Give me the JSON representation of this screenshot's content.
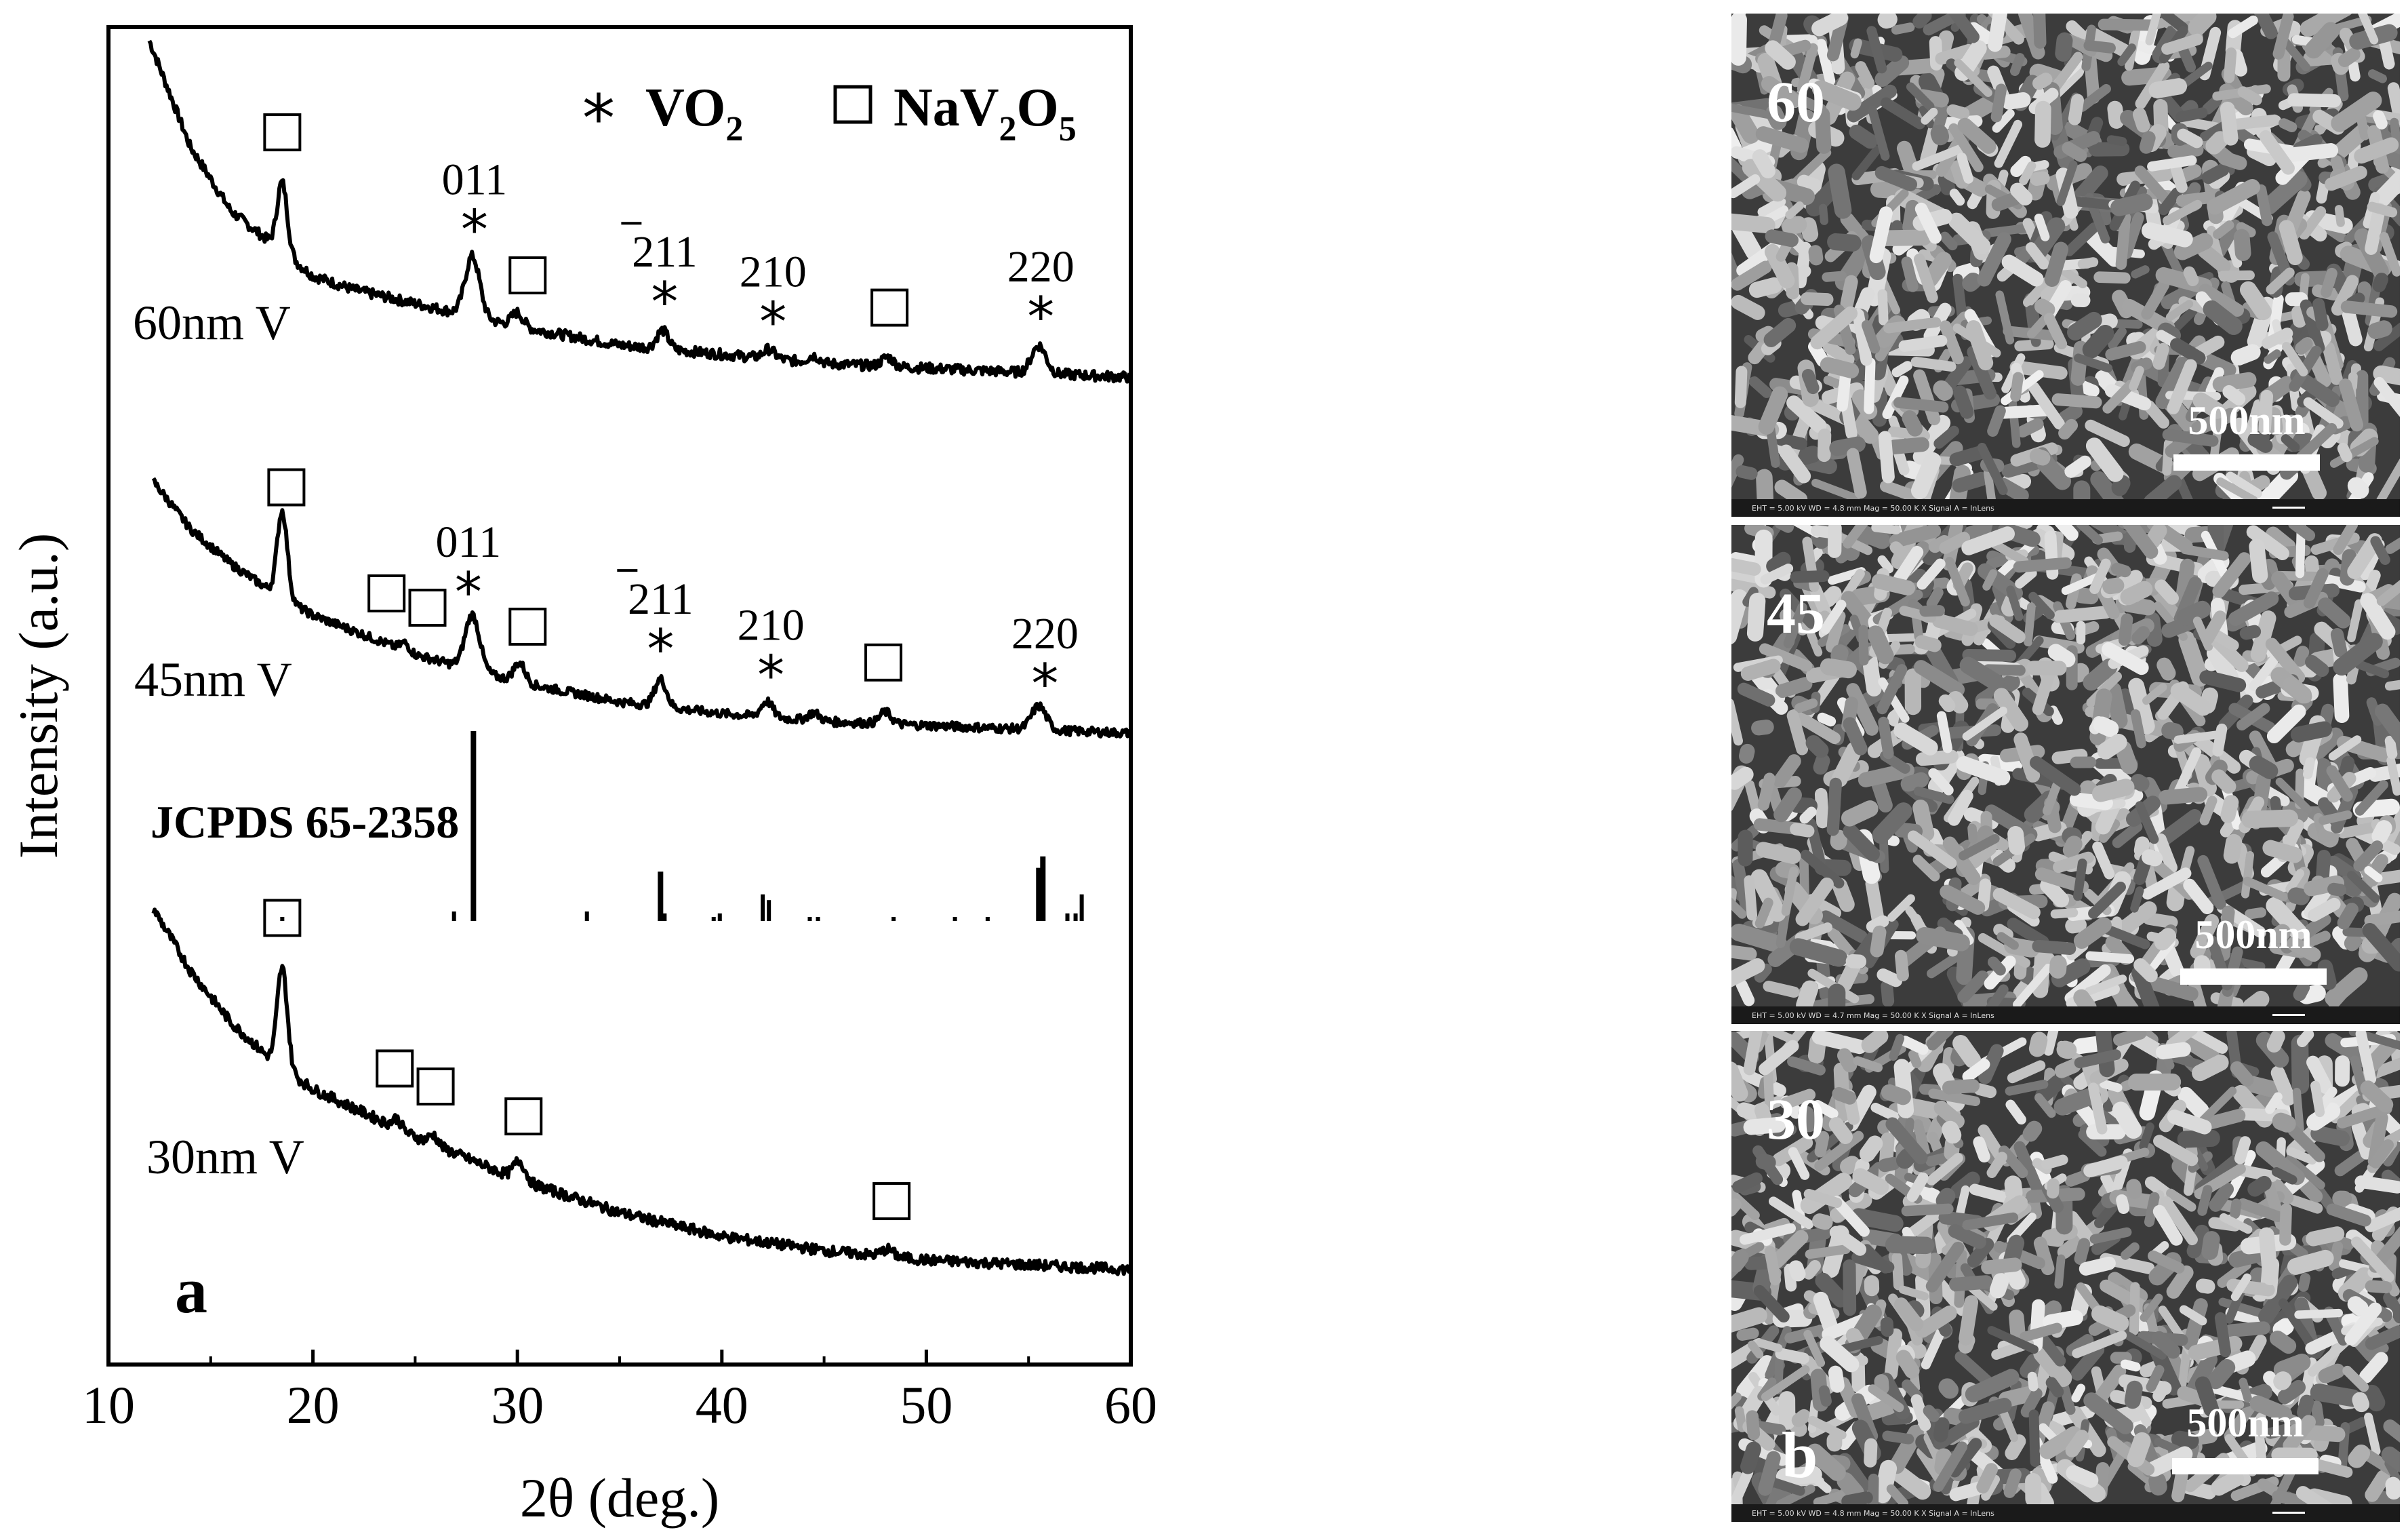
{
  "chart_data": {
    "type": "line",
    "panel_label": "a",
    "xlabel": "2θ (deg.)",
    "ylabel": "Intensity (a.u.)",
    "xlim": [
      10,
      60
    ],
    "xticks": [
      10,
      20,
      30,
      40,
      50,
      60
    ],
    "legend": [
      {
        "marker": "*",
        "label": "VO",
        "sub": "2"
      },
      {
        "marker": "□",
        "label": "NaV₂O₅"
      }
    ],
    "series": [
      {
        "name": "60nm V",
        "start_x": 12.0,
        "envelope": [
          [
            12,
            100
          ],
          [
            14,
            77
          ],
          [
            16,
            63
          ],
          [
            18,
            56
          ],
          [
            20,
            49
          ],
          [
            22,
            46
          ],
          [
            25,
            43
          ],
          [
            30,
            38
          ],
          [
            35,
            34
          ],
          [
            40,
            32
          ],
          [
            45,
            30
          ],
          [
            50,
            29
          ],
          [
            55,
            28
          ],
          [
            60,
            27
          ]
        ],
        "peaks": [
          [
            18.5,
            15,
            0.35
          ],
          [
            27.8,
            13,
            0.5
          ],
          [
            30.0,
            3,
            0.4
          ],
          [
            37.1,
            4,
            0.4
          ],
          [
            42.3,
            2,
            0.4
          ],
          [
            44.5,
            1.5,
            0.4
          ],
          [
            48.1,
            2,
            0.4
          ],
          [
            55.5,
            6,
            0.5
          ]
        ],
        "markers": [
          {
            "x": 18.5,
            "symbol": "square"
          },
          {
            "x": 27.9,
            "symbol": "star",
            "label": "011"
          },
          {
            "x": 30.5,
            "symbol": "square"
          },
          {
            "x": 37.2,
            "symbol": "star",
            "label": "211",
            "overbar_digit": "2"
          },
          {
            "x": 42.5,
            "symbol": "star",
            "label": "210"
          },
          {
            "x": 48.2,
            "symbol": "square"
          },
          {
            "x": 55.6,
            "symbol": "star",
            "label": "220"
          }
        ]
      },
      {
        "name": "45nm V",
        "start_x": 12.2,
        "envelope": [
          [
            12.2,
            100
          ],
          [
            14,
            88
          ],
          [
            16,
            79
          ],
          [
            18,
            72
          ],
          [
            20,
            66
          ],
          [
            22,
            62
          ],
          [
            25,
            56
          ],
          [
            30,
            49
          ],
          [
            35,
            44
          ],
          [
            40,
            41
          ],
          [
            45,
            39
          ],
          [
            50,
            38
          ],
          [
            55,
            37
          ],
          [
            60,
            36
          ]
        ],
        "peaks": [
          [
            18.5,
            22,
            0.35
          ],
          [
            24.5,
            2,
            0.3
          ],
          [
            27.8,
            14,
            0.5
          ],
          [
            30.1,
            5,
            0.4
          ],
          [
            37.0,
            7,
            0.4
          ],
          [
            42.2,
            4,
            0.4
          ],
          [
            44.5,
            2,
            0.4
          ],
          [
            48.0,
            3,
            0.4
          ],
          [
            55.5,
            6,
            0.5
          ]
        ],
        "markers": [
          {
            "x": 18.7,
            "symbol": "square"
          },
          {
            "x": 23.6,
            "symbol": "square"
          },
          {
            "x": 25.6,
            "symbol": "square"
          },
          {
            "x": 27.6,
            "symbol": "star",
            "label": "011"
          },
          {
            "x": 30.5,
            "symbol": "square"
          },
          {
            "x": 37.0,
            "symbol": "star",
            "label": "211",
            "overbar_digit": "2"
          },
          {
            "x": 42.4,
            "symbol": "star",
            "label": "210"
          },
          {
            "x": 47.9,
            "symbol": "square"
          },
          {
            "x": 55.8,
            "symbol": "star",
            "label": "220"
          }
        ]
      },
      {
        "name": "30nm V",
        "start_x": 12.2,
        "envelope": [
          [
            12.2,
            100
          ],
          [
            14,
            87
          ],
          [
            16,
            76
          ],
          [
            18,
            68
          ],
          [
            20,
            62
          ],
          [
            22,
            58
          ],
          [
            25,
            52
          ],
          [
            30,
            43
          ],
          [
            35,
            36
          ],
          [
            40,
            31
          ],
          [
            45,
            28
          ],
          [
            50,
            26
          ],
          [
            55,
            25
          ],
          [
            60,
            24
          ]
        ],
        "peaks": [
          [
            18.5,
            21,
            0.35
          ],
          [
            24.1,
            2,
            0.3
          ],
          [
            25.9,
            2,
            0.3
          ],
          [
            30.1,
            4,
            0.4
          ],
          [
            48.1,
            1.5,
            0.4
          ]
        ],
        "markers": [
          {
            "x": 18.5,
            "symbol": "square"
          },
          {
            "x": 24.0,
            "symbol": "square"
          },
          {
            "x": 26.0,
            "symbol": "square"
          },
          {
            "x": 30.3,
            "symbol": "square"
          },
          {
            "x": 48.3,
            "symbol": "square"
          }
        ]
      }
    ],
    "reference": {
      "name": "JCPDS 65-2358",
      "sticks": [
        [
          18.5,
          1
        ],
        [
          26.9,
          5
        ],
        [
          27.85,
          100
        ],
        [
          33.4,
          5
        ],
        [
          37.0,
          26
        ],
        [
          37.2,
          4
        ],
        [
          39.6,
          2
        ],
        [
          39.9,
          4
        ],
        [
          42.0,
          14
        ],
        [
          42.3,
          11
        ],
        [
          44.3,
          2
        ],
        [
          44.7,
          2
        ],
        [
          48.4,
          2
        ],
        [
          51.4,
          1
        ],
        [
          53.0,
          2
        ],
        [
          55.5,
          28
        ],
        [
          55.7,
          34
        ],
        [
          56.9,
          4
        ],
        [
          57.3,
          4
        ],
        [
          57.6,
          14
        ]
      ]
    }
  },
  "sem": {
    "panel_label": "b",
    "panels": [
      {
        "thickness": "60",
        "scalebar": "500nm",
        "info": "EHT = 5.00 kV    WD = 4.8 mm    Mag = 50.00 K X    Signal A = InLens"
      },
      {
        "thickness": "45",
        "scalebar": "500nm",
        "info": "EHT = 5.00 kV    WD = 4.7 mm    Mag = 50.00 K X    Signal A = InLens"
      },
      {
        "thickness": "30",
        "scalebar": "500nm",
        "info": "EHT = 5.00 kV    WD = 4.8 mm    Mag = 50.00 K X    Signal A = InLens"
      }
    ]
  }
}
